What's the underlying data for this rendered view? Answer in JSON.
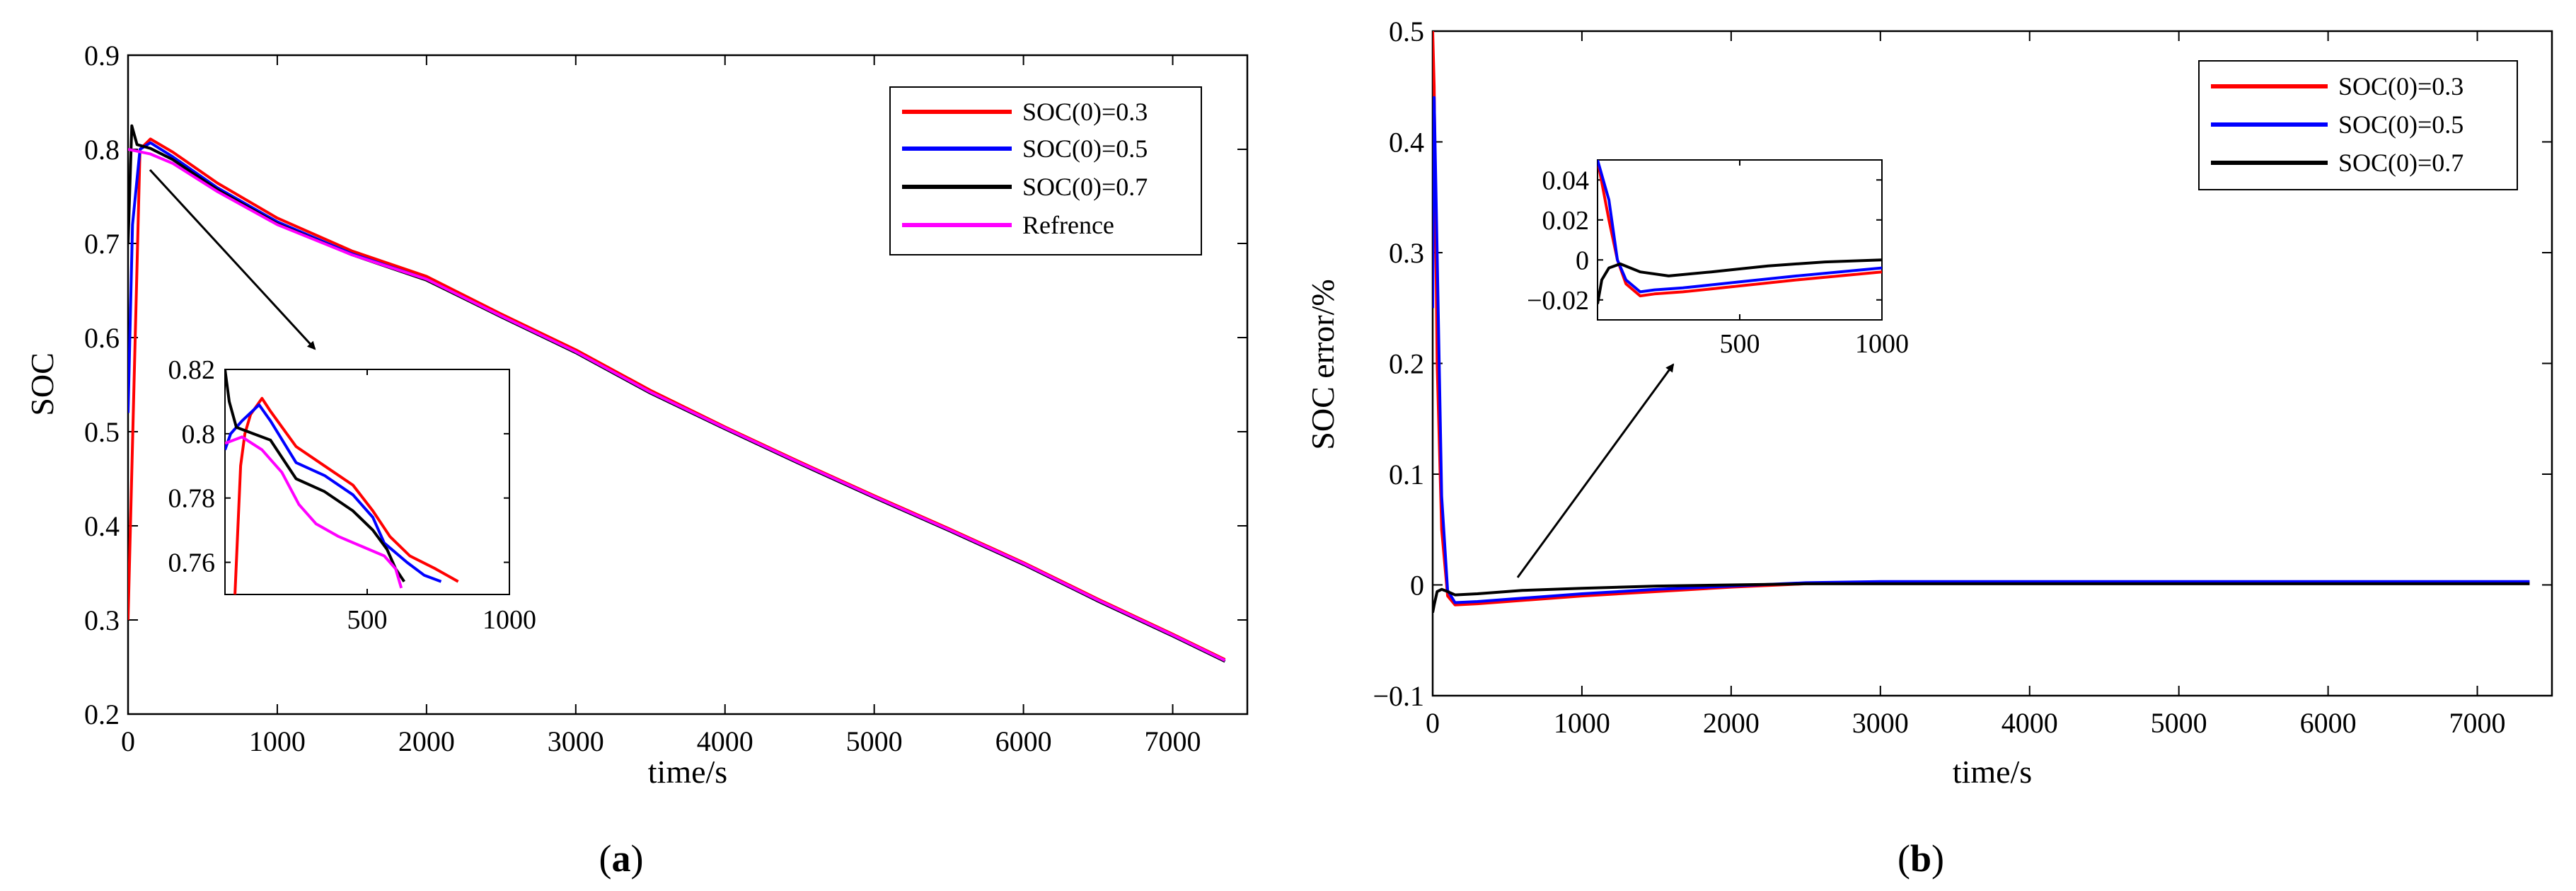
{
  "chart_data": [
    {
      "type": "line",
      "panel_label_open": "(",
      "panel_label_letter": "a",
      "panel_label_close": ")",
      "xlabel": "time/s",
      "ylabel": "SOC",
      "xlim": [
        0,
        7500
      ],
      "ylim": [
        0.2,
        0.9
      ],
      "xticks": [
        0,
        1000,
        2000,
        3000,
        4000,
        5000,
        6000,
        7000
      ],
      "yticks": [
        0.2,
        0.3,
        0.4,
        0.5,
        0.6,
        0.7,
        0.8,
        0.9
      ],
      "legend_position": "top-right",
      "series": [
        {
          "name": "SOC(0)=0.3",
          "color": "#ff0000",
          "x": [
            0,
            40,
            80,
            150,
            300,
            600,
            1000,
            1500,
            2000,
            2500,
            3000,
            3500,
            4000,
            4500,
            5000,
            5500,
            6000,
            6500,
            7000,
            7350
          ],
          "y": [
            0.3,
            0.55,
            0.8,
            0.811,
            0.797,
            0.764,
            0.727,
            0.692,
            0.665,
            0.625,
            0.587,
            0.544,
            0.505,
            0.468,
            0.432,
            0.397,
            0.361,
            0.322,
            0.285,
            0.258
          ]
        },
        {
          "name": "SOC(0)=0.5",
          "color": "#0000ff",
          "x": [
            0,
            30,
            80,
            150,
            300,
            600,
            1000,
            1500,
            2000,
            2500,
            3000,
            3500,
            4000,
            4500,
            5000,
            5500,
            6000,
            6500,
            7000,
            7350
          ],
          "y": [
            0.52,
            0.72,
            0.8,
            0.807,
            0.792,
            0.759,
            0.723,
            0.689,
            0.662,
            0.622,
            0.584,
            0.541,
            0.503,
            0.466,
            0.43,
            0.395,
            0.359,
            0.32,
            0.283,
            0.256
          ]
        },
        {
          "name": "SOC(0)=0.7",
          "color": "#000000",
          "x": [
            0,
            25,
            60,
            150,
            300,
            600,
            1000,
            1500,
            2000,
            2500,
            3000,
            3500,
            4000,
            4500,
            5000,
            5500,
            6000,
            6500,
            7000,
            7350
          ],
          "y": [
            0.7,
            0.825,
            0.805,
            0.801,
            0.789,
            0.757,
            0.721,
            0.688,
            0.661,
            0.622,
            0.584,
            0.541,
            0.503,
            0.466,
            0.43,
            0.395,
            0.359,
            0.32,
            0.283,
            0.256
          ]
        },
        {
          "name": "Refrence",
          "color": "#ff00ff",
          "x": [
            0,
            150,
            300,
            600,
            1000,
            1500,
            2000,
            2500,
            3000,
            3500,
            4000,
            4500,
            5000,
            5500,
            6000,
            6500,
            7000,
            7350
          ],
          "y": [
            0.8,
            0.795,
            0.785,
            0.755,
            0.72,
            0.688,
            0.662,
            0.623,
            0.585,
            0.542,
            0.504,
            0.467,
            0.431,
            0.396,
            0.36,
            0.321,
            0.284,
            0.257
          ]
        }
      ],
      "inset": {
        "xlim": [
          0,
          1000
        ],
        "ylim": [
          0.75,
          0.82
        ],
        "xticks": [
          500,
          1000
        ],
        "yticks": [
          0.76,
          0.78,
          0.8,
          0.82
        ],
        "series": [
          {
            "name": "SOC(0)=0.3",
            "color": "#ff0000",
            "x": [
              35,
              55,
              70,
              90,
              130,
              160,
              250,
              350,
              450,
              520,
              580,
              650,
              740,
              820
            ],
            "y": [
              0.75,
              0.79,
              0.8,
              0.806,
              0.811,
              0.807,
              0.796,
              0.79,
              0.784,
              0.776,
              0.768,
              0.762,
              0.758,
              0.754
            ]
          },
          {
            "name": "SOC(0)=0.5",
            "color": "#0000ff",
            "x": [
              0,
              20,
              60,
              120,
              160,
              250,
              350,
              450,
              520,
              560,
              640,
              700,
              760
            ],
            "y": [
              0.795,
              0.8,
              0.804,
              0.809,
              0.804,
              0.791,
              0.787,
              0.781,
              0.774,
              0.766,
              0.76,
              0.756,
              0.754
            ]
          },
          {
            "name": "SOC(0)=0.7",
            "color": "#000000",
            "x": [
              0,
              15,
              40,
              100,
              160,
              250,
              350,
              450,
              520,
              570,
              600,
              630
            ],
            "y": [
              0.82,
              0.81,
              0.802,
              0.8,
              0.798,
              0.786,
              0.782,
              0.776,
              0.77,
              0.764,
              0.758,
              0.754
            ]
          },
          {
            "name": "Refrence",
            "color": "#ff00ff",
            "x": [
              0,
              60,
              130,
              200,
              260,
              320,
              400,
              480,
              560,
              600,
              620
            ],
            "y": [
              0.797,
              0.799,
              0.795,
              0.788,
              0.778,
              0.772,
              0.768,
              0.765,
              0.762,
              0.758,
              0.752
            ]
          }
        ]
      }
    },
    {
      "type": "line",
      "panel_label_open": "(",
      "panel_label_letter": "b",
      "panel_label_close": ")",
      "xlabel": "time/s",
      "ylabel": "SOC error/%",
      "xlim": [
        0,
        7500
      ],
      "ylim": [
        -0.1,
        0.5
      ],
      "xticks": [
        0,
        1000,
        2000,
        3000,
        4000,
        5000,
        6000,
        7000
      ],
      "yticks": [
        -0.1,
        0,
        0.1,
        0.2,
        0.3,
        0.4,
        0.5
      ],
      "ytick_labels": [
        "−0.1",
        "0",
        "0.1",
        "0.2",
        "0.3",
        "0.4",
        "0.5"
      ],
      "legend_position": "top-right",
      "series": [
        {
          "name": "SOC(0)=0.3",
          "color": "#ff0000",
          "x": [
            0,
            10,
            30,
            60,
            100,
            150,
            300,
            600,
            1000,
            1500,
            2000,
            2500,
            3000,
            4000,
            5000,
            6000,
            7000,
            7350
          ],
          "y": [
            0.5,
            0.45,
            0.2,
            0.05,
            -0.01,
            -0.018,
            -0.017,
            -0.014,
            -0.01,
            -0.006,
            -0.002,
            0.001,
            0.002,
            0.002,
            0.002,
            0.002,
            0.002,
            0.002
          ]
        },
        {
          "name": "SOC(0)=0.5",
          "color": "#0000ff",
          "x": [
            0,
            10,
            30,
            60,
            100,
            150,
            300,
            600,
            1000,
            1500,
            2000,
            2500,
            3000,
            4000,
            5000,
            6000,
            7000,
            7350
          ],
          "y": [
            0.25,
            0.44,
            0.3,
            0.08,
            -0.005,
            -0.016,
            -0.015,
            -0.012,
            -0.008,
            -0.004,
            -0.001,
            0.002,
            0.003,
            0.003,
            0.003,
            0.003,
            0.003,
            0.003
          ]
        },
        {
          "name": "SOC(0)=0.7",
          "color": "#000000",
          "x": [
            0,
            10,
            30,
            60,
            100,
            150,
            300,
            600,
            1000,
            1500,
            2000,
            2500,
            3000,
            4000,
            5000,
            6000,
            7000,
            7350
          ],
          "y": [
            -0.025,
            -0.018,
            -0.006,
            -0.004,
            -0.006,
            -0.009,
            -0.008,
            -0.005,
            -0.003,
            -0.001,
            0.0,
            0.001,
            0.001,
            0.001,
            0.001,
            0.001,
            0.001,
            0.001
          ]
        }
      ],
      "inset": {
        "xlim": [
          0,
          1000
        ],
        "ylim": [
          -0.03,
          0.05
        ],
        "xticks": [
          500,
          1000
        ],
        "yticks": [
          -0.02,
          0,
          0.02,
          0.04
        ],
        "ytick_labels": [
          "−0.02",
          "0",
          "0.02",
          "0.04"
        ],
        "series": [
          {
            "name": "SOC(0)=0.3",
            "color": "#ff0000",
            "x": [
              0,
              40,
              70,
              100,
              150,
              200,
              300,
              500,
              700,
              1000
            ],
            "y": [
              0.05,
              0.02,
              0.0,
              -0.012,
              -0.018,
              -0.017,
              -0.016,
              -0.013,
              -0.01,
              -0.006
            ]
          },
          {
            "name": "SOC(0)=0.5",
            "color": "#0000ff",
            "x": [
              0,
              40,
              70,
              100,
              150,
              200,
              300,
              500,
              700,
              1000
            ],
            "y": [
              0.05,
              0.03,
              0.0,
              -0.01,
              -0.016,
              -0.015,
              -0.014,
              -0.011,
              -0.008,
              -0.004
            ]
          },
          {
            "name": "SOC(0)=0.7",
            "color": "#000000",
            "x": [
              0,
              15,
              40,
              80,
              150,
              250,
              400,
              600,
              800,
              1000
            ],
            "y": [
              -0.022,
              -0.01,
              -0.004,
              -0.002,
              -0.006,
              -0.008,
              -0.006,
              -0.003,
              -0.001,
              0.0
            ]
          }
        ]
      }
    }
  ]
}
